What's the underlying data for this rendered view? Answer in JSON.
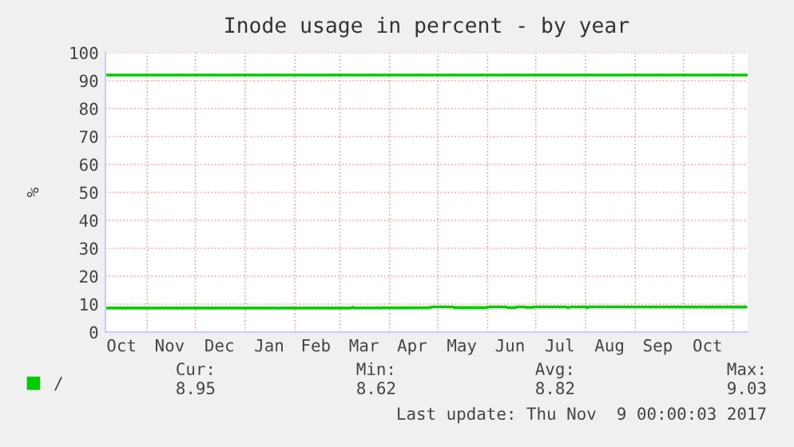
{
  "chart_data": {
    "type": "line",
    "title": "Inode usage in percent - by year",
    "ylabel": "%",
    "x": [
      "2016-10-06",
      "2017-03-08",
      "2017-03-09",
      "2017-03-10",
      "2017-04-25",
      "2017-04-28",
      "2017-05-10",
      "2017-05-12",
      "2017-05-31",
      "2017-06-02",
      "2017-06-12",
      "2017-06-14",
      "2017-06-18",
      "2017-06-20",
      "2017-06-24",
      "2017-06-25",
      "2017-06-29",
      "2017-07-01",
      "2017-07-20",
      "2017-07-21",
      "2017-07-23",
      "2017-08-01",
      "2017-08-02",
      "2017-08-03",
      "2017-11-09"
    ],
    "series": [
      {
        "name": "/",
        "color": "#00cc00",
        "values": [
          8.62,
          8.62,
          8.9,
          8.65,
          8.7,
          9.0,
          9.0,
          8.75,
          8.75,
          9.0,
          9.0,
          8.8,
          8.8,
          9.0,
          9.0,
          8.85,
          8.9,
          9.0,
          9.0,
          8.8,
          9.0,
          9.0,
          8.8,
          9.0,
          8.95
        ]
      }
    ],
    "xlim": [
      "2016-10-06",
      "2017-11-10"
    ],
    "xticks": [
      {
        "value": "2016-10-16",
        "label": "Oct"
      },
      {
        "value": "2016-11-01",
        "label": null
      },
      {
        "value": "2016-11-15",
        "label": "Nov"
      },
      {
        "value": "2016-12-01",
        "label": null
      },
      {
        "value": "2016-12-16",
        "label": "Dec"
      },
      {
        "value": "2017-01-01",
        "label": null
      },
      {
        "value": "2017-01-16",
        "label": "Jan"
      },
      {
        "value": "2017-02-01",
        "label": null
      },
      {
        "value": "2017-02-14",
        "label": "Feb"
      },
      {
        "value": "2017-03-01",
        "label": null
      },
      {
        "value": "2017-03-16",
        "label": "Mar"
      },
      {
        "value": "2017-04-01",
        "label": null
      },
      {
        "value": "2017-04-15",
        "label": "Apr"
      },
      {
        "value": "2017-05-01",
        "label": null
      },
      {
        "value": "2017-05-16",
        "label": "May"
      },
      {
        "value": "2017-06-01",
        "label": null
      },
      {
        "value": "2017-06-15",
        "label": "Jun"
      },
      {
        "value": "2017-07-01",
        "label": null
      },
      {
        "value": "2017-07-16",
        "label": "Jul"
      },
      {
        "value": "2017-08-01",
        "label": null
      },
      {
        "value": "2017-08-16",
        "label": "Aug"
      },
      {
        "value": "2017-09-01",
        "label": null
      },
      {
        "value": "2017-09-15",
        "label": "Sep"
      },
      {
        "value": "2017-10-01",
        "label": null
      },
      {
        "value": "2017-10-16",
        "label": "Oct"
      },
      {
        "value": "2017-11-01",
        "label": null
      }
    ],
    "ylim": [
      0,
      100
    ],
    "yticks": [
      0,
      10,
      20,
      30,
      40,
      50,
      60,
      70,
      80,
      90,
      100
    ],
    "grid": true,
    "legend": "bottom left",
    "line_style": "solid",
    "marker": "none",
    "ref_lines": [
      {
        "axis": "y",
        "value": 92,
        "color": "#00cc00"
      }
    ],
    "annotations": [
      "Cur:",
      "Min:",
      "Avg:",
      "Max:",
      "8.95",
      "8.62",
      "8.82",
      "9.03",
      "Last update: Thu Nov  9 00:00:03 2017"
    ]
  }
}
